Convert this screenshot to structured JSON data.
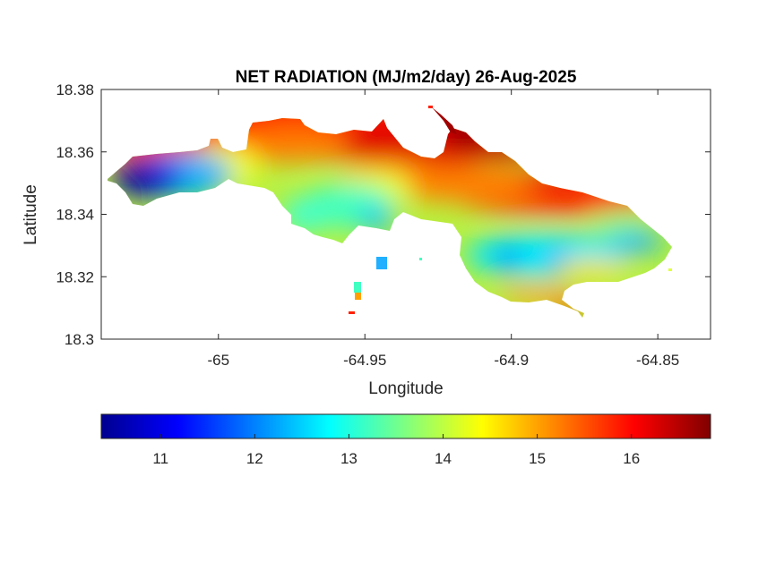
{
  "chart_data": {
    "type": "heatmap",
    "title": "NET RADIATION (MJ/m2/day) 26-Aug-2025",
    "xlabel": "Longitude",
    "ylabel": "Latitude",
    "xlim": [
      -65.04,
      -64.832
    ],
    "ylim": [
      18.3,
      18.38
    ],
    "xticks": [
      -65,
      -64.95,
      -64.9,
      -64.85
    ],
    "xtick_labels": [
      "-65",
      "-64.95",
      "-64.9",
      "-64.85"
    ],
    "yticks": [
      18.3,
      18.32,
      18.34,
      18.36,
      18.38
    ],
    "ytick_labels": [
      "18.3",
      "18.32",
      "18.34",
      "18.36",
      "18.38"
    ],
    "grid": false,
    "colormap": "jet",
    "colorbar": {
      "placement": "bottom",
      "range": [
        10.37,
        16.84
      ],
      "ticks": [
        11,
        12,
        13,
        14,
        15,
        16
      ],
      "tick_labels": [
        "11",
        "12",
        "13",
        "14",
        "15",
        "16"
      ]
    },
    "field_summary": {
      "min_value_region": "west tip",
      "max_value_region": "north-central coast",
      "approx_min": 10.5,
      "approx_max": 16.8
    }
  }
}
